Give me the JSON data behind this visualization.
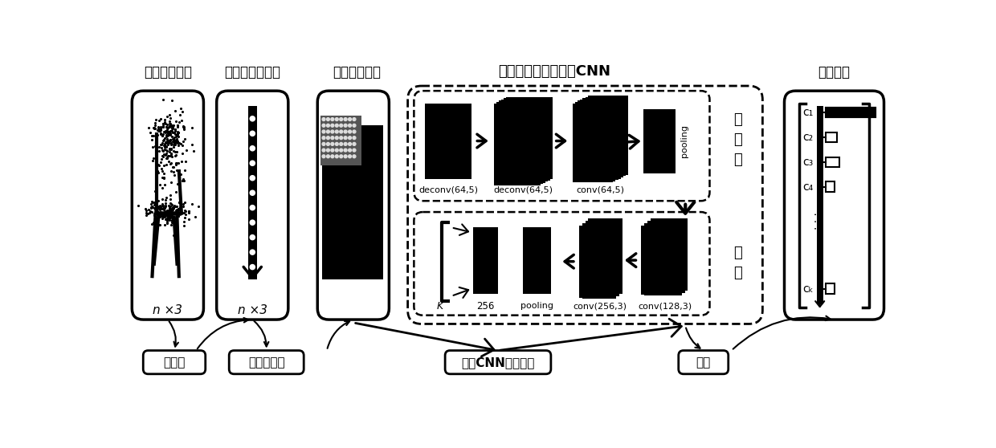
{
  "bg_color": "#ffffff",
  "labels_top": [
    "三维点云模型",
    "有序化点云数据",
    "二维点云图像",
    "面向二维点云图像的CNN",
    "分类结果"
  ],
  "labels_bottom": [
    "有序化",
    "二维图像化",
    "输入CNN分类网络",
    "分类"
  ],
  "cnn_top_labels": [
    "deconv(64,5)",
    "deconv(64,5)",
    "conv(64,5)",
    "pooling"
  ],
  "cnn_bot_labels": [
    "K",
    "256",
    "pooling",
    "conv(256,3)",
    "conv(128,3)"
  ],
  "fanjiuaji_label": "反\n卷\n积",
  "juanji_label": "卷\n积",
  "text_color": "#000000"
}
